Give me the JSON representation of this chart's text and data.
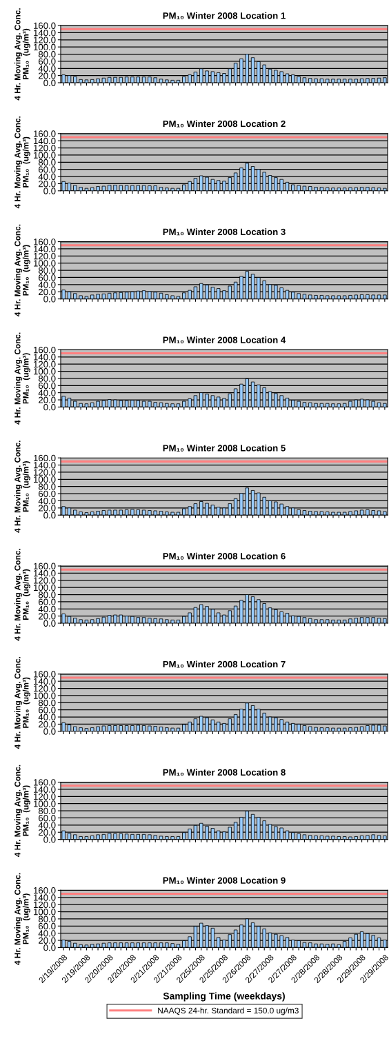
{
  "chart_data": [
    {
      "type": "bar",
      "title": "PM₁₀ Winter 2008 Location 1",
      "ylabel": "4 Hr. Moving Avg. Conc.\nPM₁₀  (ug/m³)",
      "categories": [
        null,
        null,
        null,
        null,
        null,
        null,
        null,
        null,
        null,
        null,
        null,
        null,
        null,
        null,
        null,
        null,
        null,
        null,
        null,
        null,
        null,
        null,
        null,
        null,
        null,
        null,
        null,
        null,
        null,
        null,
        null,
        null,
        null,
        null,
        null,
        null,
        null,
        null,
        null,
        null,
        null,
        null,
        null,
        null,
        null,
        null,
        null,
        null,
        null,
        null,
        null,
        null,
        null,
        null,
        null,
        null,
        null
      ],
      "color": "#99ccff",
      "values": [
        22,
        20,
        17,
        9,
        8,
        9,
        11,
        13,
        15,
        15,
        15,
        16,
        16,
        16,
        16,
        16,
        14,
        10,
        8,
        7,
        7,
        17,
        22,
        30,
        39,
        33,
        31,
        28,
        26,
        39,
        55,
        67,
        80,
        70,
        59,
        50,
        38,
        35,
        31,
        25,
        22,
        17,
        14,
        12,
        11,
        11,
        10,
        10,
        10,
        10,
        10,
        10,
        11,
        12,
        12,
        13,
        14
      ],
      "ylim": [
        0,
        160
      ],
      "yticks": [
        {
          "value": 0,
          "label": "0.0"
        },
        {
          "value": 20,
          "label": "20.0"
        },
        {
          "value": 40,
          "label": "40.0"
        },
        {
          "value": 60,
          "label": "60.0"
        },
        {
          "value": 80,
          "label": "80.0"
        },
        {
          "value": 100,
          "label": "100.0"
        },
        {
          "value": 120,
          "label": "120.0"
        },
        {
          "value": 140,
          "label": "140.0"
        },
        {
          "value": 160,
          "label": "160.0"
        }
      ],
      "grid": "y",
      "ref_lines": [
        {
          "axis": "y",
          "value": 150,
          "color": "#ff8080"
        }
      ]
    },
    {
      "type": "bar",
      "title": "PM₁₀ Winter 2008 Location 2",
      "ylabel": "4 Hr. Moving Avg. Conc.\nPM₁₀  (ug/m³)",
      "categories": [
        null,
        null,
        null,
        null,
        null,
        null,
        null,
        null,
        null,
        null,
        null,
        null,
        null,
        null,
        null,
        null,
        null,
        null,
        null,
        null,
        null,
        null,
        null,
        null,
        null,
        null,
        null,
        null,
        null,
        null,
        null,
        null,
        null,
        null,
        null,
        null,
        null,
        null,
        null,
        null,
        null,
        null,
        null,
        null,
        null,
        null,
        null,
        null,
        null,
        null,
        null,
        null,
        null,
        null,
        null,
        null,
        null
      ],
      "color": "#99ccff",
      "values": [
        26,
        22,
        15,
        10,
        7,
        9,
        12,
        13,
        16,
        16,
        15,
        15,
        15,
        15,
        15,
        14,
        14,
        10,
        8,
        7,
        7,
        17,
        26,
        35,
        42,
        38,
        32,
        29,
        27,
        37,
        50,
        64,
        77,
        68,
        60,
        52,
        43,
        37,
        32,
        24,
        17,
        15,
        13,
        12,
        10,
        10,
        9,
        8,
        8,
        8,
        9,
        9,
        10,
        10,
        9,
        8,
        7
      ],
      "ylim": [
        0,
        160
      ],
      "yticks": [
        {
          "value": 0,
          "label": "0.0"
        },
        {
          "value": 20,
          "label": "20.0"
        },
        {
          "value": 40,
          "label": "40.0"
        },
        {
          "value": 60,
          "label": "60.0"
        },
        {
          "value": 80,
          "label": "80.0"
        },
        {
          "value": 100,
          "label": "100.0"
        },
        {
          "value": 120,
          "label": "120.0"
        },
        {
          "value": 140,
          "label": "140.0"
        },
        {
          "value": 160,
          "label": "160.0"
        }
      ],
      "grid": "y",
      "ref_lines": [
        {
          "axis": "y",
          "value": 150,
          "color": "#ff8080"
        }
      ]
    },
    {
      "type": "bar",
      "title": "PM₁₀ Winter 2008 Location 3",
      "ylabel": "4 Hr. Moving Avg. Conc.\nPM₁₀  (ug/m³)",
      "categories": [
        null,
        null,
        null,
        null,
        null,
        null,
        null,
        null,
        null,
        null,
        null,
        null,
        null,
        null,
        null,
        null,
        null,
        null,
        null,
        null,
        null,
        null,
        null,
        null,
        null,
        null,
        null,
        null,
        null,
        null,
        null,
        null,
        null,
        null,
        null,
        null,
        null,
        null,
        null,
        null,
        null,
        null,
        null,
        null,
        null,
        null,
        null,
        null,
        null,
        null,
        null,
        null,
        null,
        null,
        null,
        null,
        null
      ],
      "color": "#99ccff",
      "values": [
        25,
        20,
        15,
        9,
        7,
        11,
        13,
        14,
        16,
        17,
        18,
        19,
        20,
        22,
        23,
        21,
        19,
        16,
        12,
        9,
        7,
        17,
        24,
        34,
        43,
        39,
        33,
        29,
        23,
        36,
        47,
        63,
        77,
        69,
        60,
        51,
        40,
        38,
        31,
        24,
        19,
        15,
        13,
        11,
        10,
        10,
        9,
        9,
        9,
        9,
        10,
        11,
        12,
        12,
        11,
        11,
        11
      ],
      "ylim": [
        0,
        160
      ],
      "yticks": [
        {
          "value": 0,
          "label": "0.0"
        },
        {
          "value": 20,
          "label": "20.0"
        },
        {
          "value": 40,
          "label": "40.0"
        },
        {
          "value": 60,
          "label": "60.0"
        },
        {
          "value": 80,
          "label": "80.0"
        },
        {
          "value": 100,
          "label": "100.0"
        },
        {
          "value": 120,
          "label": "120.0"
        },
        {
          "value": 140,
          "label": "140.0"
        },
        {
          "value": 160,
          "label": "160.0"
        }
      ],
      "grid": "y",
      "ref_lines": [
        {
          "axis": "y",
          "value": 150,
          "color": "#ff8080"
        }
      ]
    },
    {
      "type": "bar",
      "title": "PM₁₀ Winter 2008 Location 4",
      "ylabel": "4 Hr. Moving Avg. Conc.\nPM₁₀  (ug/m³)",
      "categories": [
        null,
        null,
        null,
        null,
        null,
        null,
        null,
        null,
        null,
        null,
        null,
        null,
        null,
        null,
        null,
        null,
        null,
        null,
        null,
        null,
        null,
        null,
        null,
        null,
        null,
        null,
        null,
        null,
        null,
        null,
        null,
        null,
        null,
        null,
        null,
        null,
        null,
        null,
        null,
        null,
        null,
        null,
        null,
        null,
        null,
        null,
        null,
        null,
        null,
        null,
        null,
        null,
        null,
        null,
        null,
        null,
        null
      ],
      "color": "#99ccff",
      "values": [
        30,
        25,
        16,
        10,
        9,
        12,
        16,
        18,
        21,
        20,
        18,
        18,
        19,
        18,
        16,
        16,
        13,
        12,
        10,
        9,
        9,
        16,
        23,
        32,
        40,
        36,
        32,
        28,
        24,
        37,
        51,
        64,
        79,
        70,
        62,
        54,
        43,
        38,
        32,
        25,
        19,
        16,
        13,
        12,
        10,
        10,
        10,
        9,
        9,
        10,
        16,
        20,
        22,
        20,
        16,
        12,
        10
      ],
      "ylim": [
        0,
        160
      ],
      "yticks": [
        {
          "value": 0,
          "label": "0.0"
        },
        {
          "value": 20,
          "label": "20.0"
        },
        {
          "value": 40,
          "label": "40.0"
        },
        {
          "value": 60,
          "label": "60.0"
        },
        {
          "value": 80,
          "label": "80.0"
        },
        {
          "value": 100,
          "label": "100.0"
        },
        {
          "value": 120,
          "label": "120.0"
        },
        {
          "value": 140,
          "label": "140.0"
        },
        {
          "value": 160,
          "label": "160.0"
        }
      ],
      "grid": "y",
      "ref_lines": [
        {
          "axis": "y",
          "value": 150,
          "color": "#ff8080"
        }
      ]
    },
    {
      "type": "bar",
      "title": "PM₁₀ Winter 2008 Location 5",
      "ylabel": "4 Hr. Moving Avg. Conc.\nPM₁₀  (ug/m³)",
      "categories": [
        null,
        null,
        null,
        null,
        null,
        null,
        null,
        null,
        null,
        null,
        null,
        null,
        null,
        null,
        null,
        null,
        null,
        null,
        null,
        null,
        null,
        null,
        null,
        null,
        null,
        null,
        null,
        null,
        null,
        null,
        null,
        null,
        null,
        null,
        null,
        null,
        null,
        null,
        null,
        null,
        null,
        null,
        null,
        null,
        null,
        null,
        null,
        null,
        null,
        null,
        null,
        null,
        null,
        null,
        null,
        null,
        null
      ],
      "color": "#99ccff",
      "values": [
        24,
        20,
        14,
        9,
        7,
        9,
        11,
        13,
        14,
        14,
        14,
        15,
        16,
        15,
        14,
        13,
        12,
        11,
        9,
        8,
        8,
        18,
        24,
        32,
        38,
        33,
        28,
        22,
        20,
        32,
        46,
        61,
        76,
        69,
        62,
        50,
        40,
        37,
        31,
        24,
        20,
        15,
        13,
        11,
        10,
        10,
        9,
        8,
        8,
        8,
        10,
        12,
        14,
        15,
        13,
        12,
        10
      ],
      "ylim": [
        0,
        160
      ],
      "yticks": [
        {
          "value": 0,
          "label": "0.0"
        },
        {
          "value": 20,
          "label": "20.0"
        },
        {
          "value": 40,
          "label": "40.0"
        },
        {
          "value": 60,
          "label": "60.0"
        },
        {
          "value": 80,
          "label": "80.0"
        },
        {
          "value": 100,
          "label": "100.0"
        },
        {
          "value": 120,
          "label": "120.0"
        },
        {
          "value": 140,
          "label": "140.0"
        },
        {
          "value": 160,
          "label": "160.0"
        }
      ],
      "grid": "y",
      "ref_lines": [
        {
          "axis": "y",
          "value": 150,
          "color": "#ff8080"
        }
      ]
    },
    {
      "type": "bar",
      "title": "PM₁₀ Winter 2008 Location 6",
      "ylabel": "4 Hr. Moving Avg. Conc.\nPM₁₀  (ug/m³)",
      "categories": [
        null,
        null,
        null,
        null,
        null,
        null,
        null,
        null,
        null,
        null,
        null,
        null,
        null,
        null,
        null,
        null,
        null,
        null,
        null,
        null,
        null,
        null,
        null,
        null,
        null,
        null,
        null,
        null,
        null,
        null,
        null,
        null,
        null,
        null,
        null,
        null,
        null,
        null,
        null,
        null,
        null,
        null,
        null,
        null,
        null,
        null,
        null,
        null,
        null,
        null,
        null,
        null,
        null,
        null,
        null,
        null,
        null
      ],
      "color": "#99ccff",
      "values": [
        26,
        19,
        14,
        10,
        9,
        10,
        13,
        17,
        22,
        23,
        23,
        20,
        19,
        16,
        16,
        14,
        13,
        12,
        10,
        9,
        9,
        19,
        29,
        44,
        52,
        47,
        39,
        29,
        23,
        35,
        48,
        64,
        80,
        74,
        66,
        55,
        43,
        38,
        32,
        28,
        21,
        19,
        16,
        13,
        10,
        10,
        10,
        9,
        9,
        9,
        12,
        14,
        16,
        16,
        16,
        14,
        13
      ],
      "ylim": [
        0,
        160
      ],
      "yticks": [
        {
          "value": 0,
          "label": "0.0"
        },
        {
          "value": 20,
          "label": "20.0"
        },
        {
          "value": 40,
          "label": "40.0"
        },
        {
          "value": 60,
          "label": "60.0"
        },
        {
          "value": 80,
          "label": "80.0"
        },
        {
          "value": 100,
          "label": "100.0"
        },
        {
          "value": 120,
          "label": "120.0"
        },
        {
          "value": 140,
          "label": "140.0"
        },
        {
          "value": 160,
          "label": "160.0"
        }
      ],
      "grid": "y",
      "ref_lines": [
        {
          "axis": "y",
          "value": 150,
          "color": "#ff8080"
        }
      ]
    },
    {
      "type": "bar",
      "title": "PM₁₀ Winter 2008 Location 7",
      "ylabel": "4 Hr. Moving Avg. Conc.\nPM₁₀  (ug/m³)",
      "categories": [
        null,
        null,
        null,
        null,
        null,
        null,
        null,
        null,
        null,
        null,
        null,
        null,
        null,
        null,
        null,
        null,
        null,
        null,
        null,
        null,
        null,
        null,
        null,
        null,
        null,
        null,
        null,
        null,
        null,
        null,
        null,
        null,
        null,
        null,
        null,
        null,
        null,
        null,
        null,
        null,
        null,
        null,
        null,
        null,
        null,
        null,
        null,
        null,
        null,
        null,
        null,
        null,
        null,
        null,
        null,
        null,
        null
      ],
      "color": "#99ccff",
      "values": [
        24,
        18,
        13,
        10,
        8,
        10,
        13,
        15,
        16,
        16,
        16,
        16,
        16,
        17,
        16,
        15,
        14,
        12,
        10,
        9,
        9,
        19,
        26,
        35,
        42,
        38,
        32,
        26,
        22,
        35,
        47,
        62,
        79,
        72,
        62,
        51,
        40,
        38,
        33,
        26,
        22,
        20,
        16,
        13,
        11,
        10,
        10,
        9,
        9,
        9,
        10,
        11,
        13,
        16,
        17,
        17,
        15
      ],
      "ylim": [
        0,
        160
      ],
      "yticks": [
        {
          "value": 0,
          "label": "0.0"
        },
        {
          "value": 20,
          "label": "20.0"
        },
        {
          "value": 40,
          "label": "40.0"
        },
        {
          "value": 60,
          "label": "60.0"
        },
        {
          "value": 80,
          "label": "80.0"
        },
        {
          "value": 100,
          "label": "100.0"
        },
        {
          "value": 120,
          "label": "120.0"
        },
        {
          "value": 140,
          "label": "140.0"
        },
        {
          "value": 160,
          "label": "160.0"
        }
      ],
      "grid": "y",
      "ref_lines": [
        {
          "axis": "y",
          "value": 150,
          "color": "#ff8080"
        }
      ]
    },
    {
      "type": "bar",
      "title": "PM₁₀ Winter 2008 Location 8",
      "ylabel": "4 Hr. Moving Avg. Conc.\nPM₁₀  (ug/m³)",
      "categories": [
        null,
        null,
        null,
        null,
        null,
        null,
        null,
        null,
        null,
        null,
        null,
        null,
        null,
        null,
        null,
        null,
        null,
        null,
        null,
        null,
        null,
        null,
        null,
        null,
        null,
        null,
        null,
        null,
        null,
        null,
        null,
        null,
        null,
        null,
        null,
        null,
        null,
        null,
        null,
        null,
        null,
        null,
        null,
        null,
        null,
        null,
        null,
        null,
        null,
        null,
        null,
        null,
        null,
        null,
        null,
        null,
        null
      ],
      "color": "#99ccff",
      "values": [
        24,
        17,
        13,
        8,
        8,
        10,
        13,
        14,
        17,
        16,
        16,
        15,
        14,
        14,
        14,
        13,
        11,
        9,
        8,
        8,
        8,
        19,
        29,
        39,
        45,
        37,
        31,
        24,
        21,
        34,
        48,
        62,
        79,
        70,
        62,
        52,
        42,
        36,
        32,
        24,
        19,
        16,
        13,
        11,
        10,
        10,
        9,
        9,
        8,
        8,
        7,
        8,
        10,
        11,
        13,
        11,
        10
      ],
      "ylim": [
        0,
        160
      ],
      "yticks": [
        {
          "value": 0,
          "label": "0.0"
        },
        {
          "value": 20,
          "label": "20.0"
        },
        {
          "value": 40,
          "label": "40.0"
        },
        {
          "value": 60,
          "label": "60.0"
        },
        {
          "value": 80,
          "label": "80.0"
        },
        {
          "value": 100,
          "label": "100.0"
        },
        {
          "value": 120,
          "label": "120.0"
        },
        {
          "value": 140,
          "label": "140.0"
        },
        {
          "value": 160,
          "label": "160.0"
        }
      ],
      "grid": "y",
      "ref_lines": [
        {
          "axis": "y",
          "value": 150,
          "color": "#ff8080"
        }
      ]
    },
    {
      "type": "bar",
      "title": "PM₁₀ Winter 2008 Location 9",
      "ylabel": "4 Hr. Moving Avg. Conc.\nPM₁₀  (ug/m³)",
      "xlabel": "Sampling Time (weekdays)",
      "categories": [
        "2/19/2008",
        null,
        null,
        null,
        "2/19/2008",
        null,
        null,
        null,
        "2/20/2008",
        null,
        null,
        null,
        "2/20/2008",
        null,
        null,
        null,
        "2/21/2008",
        null,
        null,
        null,
        "2/21/2008",
        null,
        null,
        null,
        "2/25/2008",
        null,
        null,
        null,
        "2/25/2008",
        null,
        null,
        null,
        "2/26/2008",
        null,
        null,
        null,
        "2/27/2008",
        null,
        null,
        null,
        "2/27/2008",
        null,
        null,
        null,
        "2/28/2008",
        null,
        null,
        null,
        "2/28/2008",
        null,
        null,
        null,
        "2/29/2008",
        null,
        null,
        null,
        "2/29/2008"
      ],
      "color": "#99ccff",
      "values": [
        21,
        17,
        12,
        8,
        7,
        9,
        10,
        12,
        13,
        13,
        13,
        13,
        13,
        13,
        13,
        13,
        13,
        13,
        13,
        11,
        9,
        19,
        30,
        59,
        68,
        61,
        54,
        28,
        21,
        36,
        49,
        63,
        80,
        69,
        59,
        52,
        41,
        37,
        33,
        28,
        21,
        19,
        14,
        13,
        10,
        10,
        9,
        10,
        8,
        17,
        27,
        37,
        44,
        39,
        34,
        27,
        21
      ],
      "ylim": [
        0,
        160
      ],
      "yticks": [
        {
          "value": 0,
          "label": "0.0"
        },
        {
          "value": 20,
          "label": "20.0"
        },
        {
          "value": 40,
          "label": "40.0"
        },
        {
          "value": 60,
          "label": "60.0"
        },
        {
          "value": 80,
          "label": "80.0"
        },
        {
          "value": 100,
          "label": "100.0"
        },
        {
          "value": 120,
          "label": "120.0"
        },
        {
          "value": 140,
          "label": "140.0"
        },
        {
          "value": 160,
          "label": "160.0"
        }
      ],
      "grid": "y",
      "legend": "bottom",
      "ref_lines": [
        {
          "axis": "y",
          "value": 150,
          "color": "#ff8080",
          "label": "NAAQS 24-hr. Standard = 150.0 ug/m3"
        }
      ]
    }
  ]
}
